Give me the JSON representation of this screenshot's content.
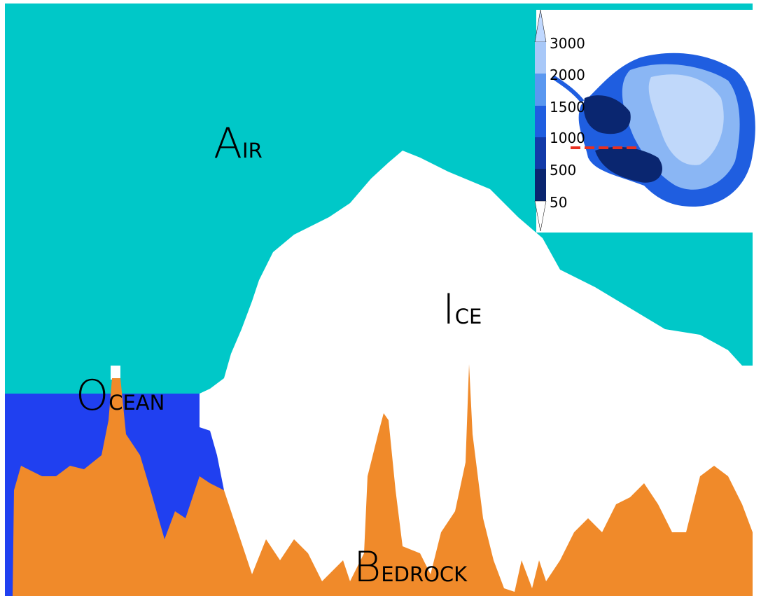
{
  "labels": {
    "air": {
      "initial": "A",
      "rest": "IR"
    },
    "ice": {
      "initial": "I",
      "rest": "CE"
    },
    "ocean": {
      "initial": "O",
      "rest": "CEAN"
    },
    "bedrock": {
      "initial": "B",
      "rest": "EDROCK"
    }
  },
  "inset": {
    "colorbar": {
      "ticks": [
        3000,
        2000,
        1500,
        1000,
        500,
        50
      ]
    }
  }
}
